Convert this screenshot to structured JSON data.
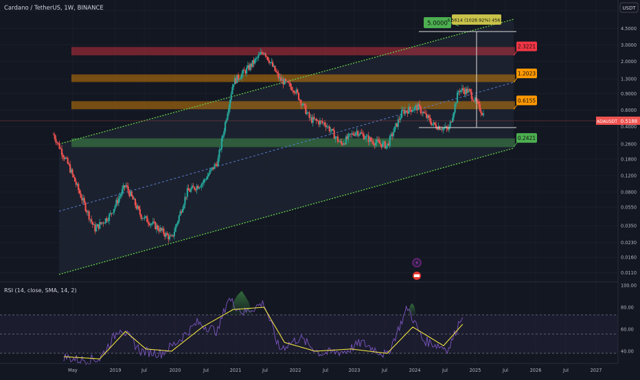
{
  "header": {
    "symbol_title": "Cardano / TetherUS, 1W, BINANCE",
    "currency_label": "USDT"
  },
  "price_axis": {
    "ticks": [
      "7.0000",
      "4.5000",
      "3.0000",
      "2.0000",
      "1.3000",
      "0.9000",
      "0.6000",
      "0.4000",
      "0.2600",
      "0.1800",
      "0.1200",
      "0.0800",
      "0.0550",
      "0.0350",
      "0.0230",
      "0.0160",
      "0.0110"
    ],
    "current_symbol": "ADAUSDT",
    "current_price": "0.5188"
  },
  "rsi_axis": {
    "ticks": [
      "100.00",
      "80.00",
      "60.00",
      "40.00"
    ]
  },
  "time_axis": {
    "ticks": [
      "May",
      "2019",
      "Jul",
      "2020",
      "Jul",
      "2021",
      "Jul",
      "2022",
      "Jul",
      "2023",
      "Jul",
      "2024",
      "Jul",
      "2025",
      "Jul",
      "2026",
      "Jul",
      "2027"
    ]
  },
  "annotations": {
    "target_label": "5.0000",
    "measure_label": "4.5614 (1028.92%) 45614",
    "level_labels": [
      "2.3221",
      "1.2023",
      "0.6155",
      "0.2421"
    ]
  },
  "indicator": {
    "title": "RSI (14, close, SMA, 14, 2)"
  },
  "colors": {
    "background": "#131722",
    "up_candle": "#26a69a",
    "down_candle": "#ef5350",
    "channel_line": "#4caf50",
    "mid_line": "#5b7fd6",
    "red_zone": "#f23645",
    "orange_zone": "#ff9800",
    "green_zone": "#4caf50",
    "rsi_line": "#7e57c2",
    "rsi_ma": "#f5e642"
  },
  "chart_data": {
    "type": "candlestick",
    "title": "Cardano / TetherUS, 1W, BINANCE",
    "scale": "log",
    "ylim": [
      0.0095,
      8.2
    ],
    "x_range": [
      "2018-04",
      "2027-06"
    ],
    "horizontal_zones": [
      {
        "label": "2.3221",
        "low": 2.3221,
        "high": 2.85,
        "color": "red"
      },
      {
        "label": "1.2023",
        "low": 1.2023,
        "high": 1.45,
        "color": "orange"
      },
      {
        "label": "0.6155",
        "low": 0.6155,
        "high": 0.75,
        "color": "orange"
      },
      {
        "label": "0.2421",
        "low": 0.2421,
        "high": 0.3,
        "color": "green"
      }
    ],
    "price_path": [
      {
        "date": "2018-04",
        "price": 0.33
      },
      {
        "date": "2018-07",
        "price": 0.15
      },
      {
        "date": "2018-09",
        "price": 0.08
      },
      {
        "date": "2018-12",
        "price": 0.032
      },
      {
        "date": "2019-03",
        "price": 0.045
      },
      {
        "date": "2019-06",
        "price": 0.095
      },
      {
        "date": "2019-09",
        "price": 0.045
      },
      {
        "date": "2019-12",
        "price": 0.034
      },
      {
        "date": "2020-03",
        "price": 0.025
      },
      {
        "date": "2020-06",
        "price": 0.08
      },
      {
        "date": "2020-09",
        "price": 0.1
      },
      {
        "date": "2020-12",
        "price": 0.17
      },
      {
        "date": "2021-03",
        "price": 1.2
      },
      {
        "date": "2021-06",
        "price": 1.7
      },
      {
        "date": "2021-09",
        "price": 2.6
      },
      {
        "date": "2021-12",
        "price": 1.3
      },
      {
        "date": "2022-03",
        "price": 1.0
      },
      {
        "date": "2022-06",
        "price": 0.48
      },
      {
        "date": "2022-09",
        "price": 0.43
      },
      {
        "date": "2022-12",
        "price": 0.26
      },
      {
        "date": "2023-03",
        "price": 0.36
      },
      {
        "date": "2023-06",
        "price": 0.28
      },
      {
        "date": "2023-09",
        "price": 0.25
      },
      {
        "date": "2023-12",
        "price": 0.58
      },
      {
        "date": "2024-03",
        "price": 0.65
      },
      {
        "date": "2024-06",
        "price": 0.42
      },
      {
        "date": "2024-09",
        "price": 0.37
      },
      {
        "date": "2024-11",
        "price": 1.0
      },
      {
        "date": "2025-01",
        "price": 0.95
      },
      {
        "date": "2025-04",
        "price": 0.5188
      }
    ],
    "rsi": {
      "ylim": [
        30,
        100
      ],
      "levels": [
        70,
        50,
        30
      ],
      "rsi_path": [
        {
          "date": "2018-06",
          "value": 35
        },
        {
          "date": "2018-09",
          "value": 32
        },
        {
          "date": "2019-01",
          "value": 33
        },
        {
          "date": "2019-05",
          "value": 62
        },
        {
          "date": "2019-09",
          "value": 40
        },
        {
          "date": "2020-01",
          "value": 38
        },
        {
          "date": "2020-04",
          "value": 48
        },
        {
          "date": "2020-08",
          "value": 66
        },
        {
          "date": "2020-12",
          "value": 58
        },
        {
          "date": "2021-02",
          "value": 88
        },
        {
          "date": "2021-05",
          "value": 75
        },
        {
          "date": "2021-09",
          "value": 84
        },
        {
          "date": "2021-12",
          "value": 42
        },
        {
          "date": "2022-04",
          "value": 52
        },
        {
          "date": "2022-08",
          "value": 38
        },
        {
          "date": "2023-01",
          "value": 40
        },
        {
          "date": "2023-04",
          "value": 48
        },
        {
          "date": "2023-09",
          "value": 36
        },
        {
          "date": "2024-01",
          "value": 80
        },
        {
          "date": "2024-04",
          "value": 50
        },
        {
          "date": "2024-09",
          "value": 42
        },
        {
          "date": "2024-12",
          "value": 78
        }
      ],
      "ma_path": [
        {
          "date": "2018-06",
          "value": 35
        },
        {
          "date": "2019-01",
          "value": 33
        },
        {
          "date": "2019-06",
          "value": 58
        },
        {
          "date": "2019-10",
          "value": 42
        },
        {
          "date": "2020-03",
          "value": 40
        },
        {
          "date": "2020-09",
          "value": 62
        },
        {
          "date": "2021-03",
          "value": 78
        },
        {
          "date": "2021-09",
          "value": 80
        },
        {
          "date": "2022-01",
          "value": 48
        },
        {
          "date": "2022-07",
          "value": 40
        },
        {
          "date": "2023-02",
          "value": 42
        },
        {
          "date": "2023-09",
          "value": 38
        },
        {
          "date": "2024-02",
          "value": 62
        },
        {
          "date": "2024-08",
          "value": 45
        },
        {
          "date": "2024-12",
          "value": 66
        }
      ]
    }
  }
}
